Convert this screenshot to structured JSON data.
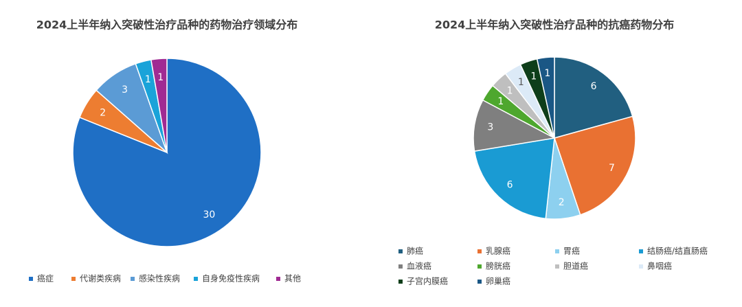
{
  "chart_data": [
    {
      "type": "pie",
      "title": "2024上半年纳入突破性治疗品种的药物治疗领域分布",
      "categories": [
        "癌症",
        "代谢类疾病",
        "感染性疾病",
        "自身免疫性疾病",
        "其他"
      ],
      "values": [
        30,
        2,
        3,
        1,
        1
      ],
      "colors": [
        "#1f6fc5",
        "#ed7d31",
        "#5b9bd5",
        "#1aa3d9",
        "#a02b93"
      ],
      "legend": "bottom"
    },
    {
      "type": "pie",
      "title": "2024上半年纳入突破性治疗品种的抗癌药物分布",
      "categories": [
        "肺癌",
        "乳腺癌",
        "胃癌",
        "结肠癌/结直肠癌",
        "血液癌",
        "膀胱癌",
        "胆道癌",
        "鼻咽癌",
        "子宫内膜癌",
        "卵巢癌"
      ],
      "values": [
        6,
        7,
        2,
        6,
        3,
        1,
        1,
        1,
        1,
        1
      ],
      "colors": [
        "#215f80",
        "#e97132",
        "#8dd0ef",
        "#1a9bd3",
        "#7f7f7f",
        "#4ea72e",
        "#bfbfbf",
        "#dceaf7",
        "#0e3e1a",
        "#1a5785"
      ],
      "legend": "bottom"
    }
  ]
}
